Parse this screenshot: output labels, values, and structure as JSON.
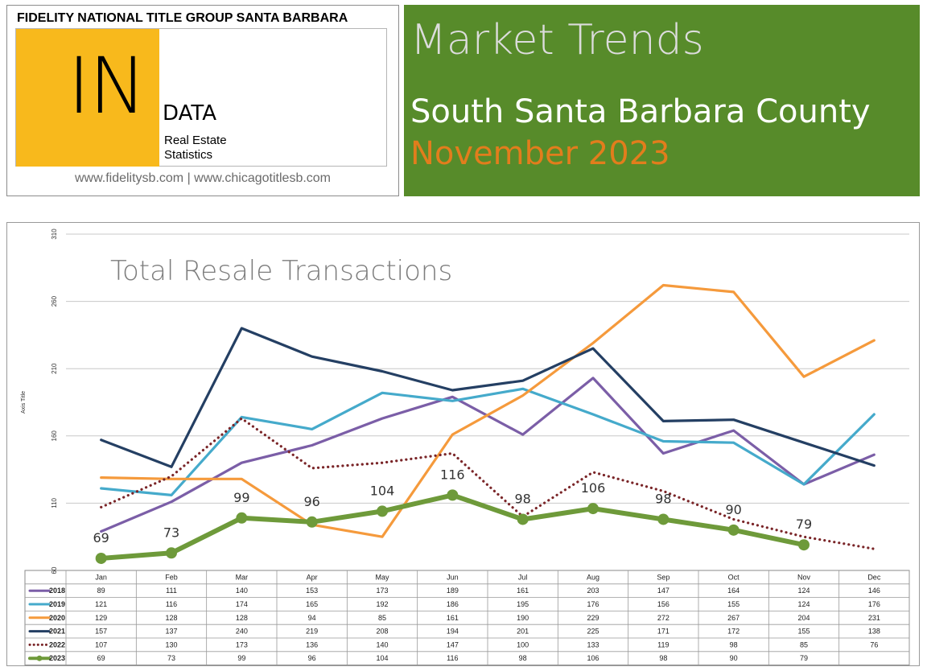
{
  "header": {
    "company": "FIDELITY NATIONAL TITLE GROUP SANTA BARBARA",
    "logo_big": "IN",
    "logo_data": "DATA",
    "logo_sub1": "Real Estate",
    "logo_sub2": "Statistics",
    "websites": "www.fidelitysb.com | www.chicagotitlesb.com",
    "banner_title": "Market Trends",
    "banner_area": "South Santa Barbara County",
    "banner_date": "November 2023"
  },
  "colors": {
    "banner_green": "#578b2a",
    "logo_yellow": "#f8b91c",
    "date_orange": "#e27d1c"
  },
  "chart_data": {
    "type": "line",
    "title": "Total Resale Transactions",
    "ylabel": "Axis Title",
    "ylim": [
      60,
      310
    ],
    "yticks": [
      60,
      110,
      160,
      210,
      260,
      310
    ],
    "grid": true,
    "categories": [
      "Jan",
      "Feb",
      "Mar",
      "Apr",
      "May",
      "Jun",
      "Jul",
      "Aug",
      "Sep",
      "Oct",
      "Nov",
      "Dec"
    ],
    "series": [
      {
        "name": "2018",
        "color": "#7b5ea7",
        "style": "solid",
        "values": [
          89,
          111,
          140,
          153,
          173,
          189,
          161,
          203,
          147,
          164,
          124,
          146
        ]
      },
      {
        "name": "2019",
        "color": "#45aacb",
        "style": "solid",
        "values": [
          121,
          116,
          174,
          165,
          192,
          186,
          195,
          176,
          156,
          155,
          124,
          176
        ]
      },
      {
        "name": "2020",
        "color": "#f59a3c",
        "style": "solid",
        "values": [
          129,
          128,
          128,
          94,
          85,
          161,
          190,
          229,
          272,
          267,
          204,
          231
        ]
      },
      {
        "name": "2021",
        "color": "#243f63",
        "style": "solid",
        "values": [
          157,
          137,
          240,
          219,
          208,
          194,
          201,
          225,
          171,
          172,
          155,
          138
        ]
      },
      {
        "name": "2022",
        "color": "#7a2528",
        "style": "dotted",
        "values": [
          107,
          130,
          173,
          136,
          140,
          147,
          100,
          133,
          119,
          98,
          85,
          76
        ]
      },
      {
        "name": "2023",
        "color": "#6e9a3a",
        "style": "thick-markers",
        "show_labels": true,
        "values": [
          69,
          73,
          99,
          96,
          104,
          116,
          98,
          106,
          98,
          90,
          79,
          null
        ]
      }
    ]
  }
}
